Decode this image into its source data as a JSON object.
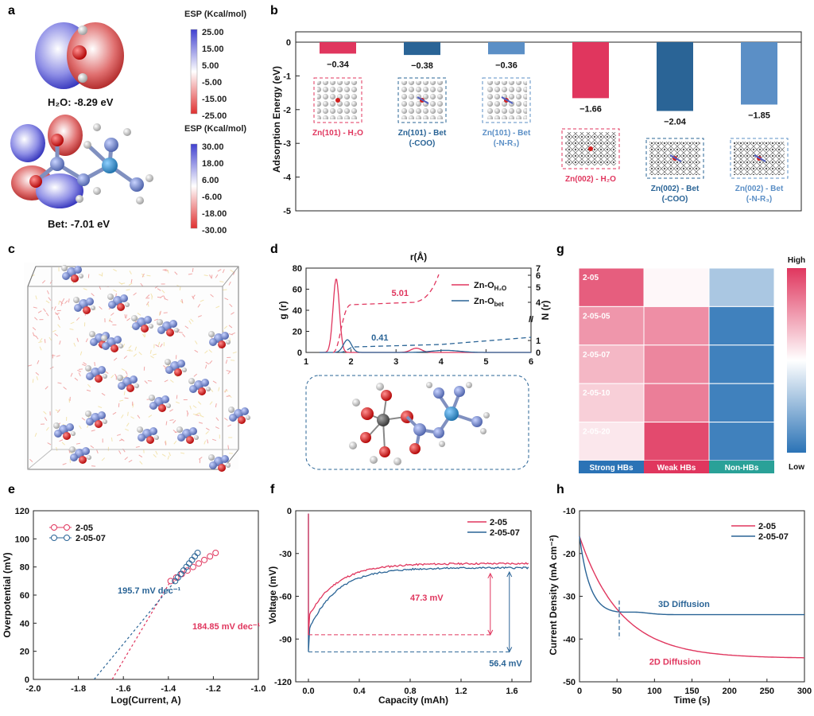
{
  "panel_labels": {
    "a": "a",
    "b": "b",
    "c": "c",
    "d": "d",
    "e": "e",
    "f": "f",
    "g": "g",
    "h": "h"
  },
  "colors": {
    "red": "#e0365e",
    "dark_blue": "#2a6496",
    "light_blue": "#5b8fc6",
    "dashed_red": "#e0365e"
  },
  "panel_a": {
    "h2o_label": "H₂O: -8.29 eV",
    "bet_label": "Bet: -7.01 eV",
    "esp1": {
      "title": "ESP (Kcal/mol)",
      "ticks": [
        "25.00",
        "15.00",
        "5.00",
        "-5.00",
        "-15.00",
        "-25.00"
      ]
    },
    "esp2": {
      "title": "ESP (Kcal/mol)",
      "ticks": [
        "30.00",
        "18.00",
        "6.00",
        "-6.00",
        "-18.00",
        "-30.00"
      ]
    }
  },
  "panel_c": {
    "description_icon": "molecular-dynamics-box"
  },
  "chart_data": [
    {
      "id": "b",
      "type": "bar",
      "ylabel": "Adsorption Energy (eV)",
      "ylim": [
        -5,
        0
      ],
      "yticks": [
        "0",
        "-1",
        "-2",
        "-3",
        "-4",
        "-5"
      ],
      "categories": [
        "Zn(101) - H₂O",
        "Zn(101) - Bet (-COO)",
        "Zn(101) - Bet (-N-R₃)",
        "Zn(002) - H₂O",
        "Zn(002) - Bet (-COO)",
        "Zn(002) - Bet (-N-R₃)"
      ],
      "cat_lines": [
        [
          "Zn(101) - H₂O"
        ],
        [
          "Zn(101) - Bet",
          "(-COO)"
        ],
        [
          "Zn(101) - Bet",
          "(-N-R₃)"
        ],
        [
          "Zn(002) - H₂O"
        ],
        [
          "Zn(002) - Bet",
          "(-COO)"
        ],
        [
          "Zn(002) - Bet",
          "(-N-R₃)"
        ]
      ],
      "values": [
        -0.34,
        -0.38,
        -0.36,
        -1.66,
        -2.04,
        -1.85
      ],
      "value_labels": [
        "−0.34",
        "−0.38",
        "−0.36",
        "−1.66",
        "−2.04",
        "−1.85"
      ]
    },
    {
      "id": "d",
      "type": "line",
      "title": "r(Å)",
      "ylabel_left": "g (r)",
      "ylabel_right": "N (r)",
      "xlim": [
        1,
        6
      ],
      "ylim_left": [
        0,
        80
      ],
      "ylim_right": [
        0,
        7
      ],
      "xticks": [
        "1",
        "2",
        "3",
        "4",
        "5",
        "6"
      ],
      "yticks_left": [
        "0",
        "20",
        "40",
        "60",
        "80"
      ],
      "yticks_right": [
        "0",
        "1",
        "4",
        "5",
        "6",
        "7"
      ],
      "series": [
        {
          "name": "Zn-O_H2O",
          "legend": "Zn-O",
          "sub": "H₂O"
        },
        {
          "name": "Zn-O_bet",
          "legend": "Zn-O",
          "sub": "bet"
        }
      ],
      "annotations": [
        "5.01",
        "0.41"
      ]
    },
    {
      "id": "g",
      "type": "heatmap",
      "rows": [
        "2-05",
        "2-05-05",
        "2-05-07",
        "2-05-10",
        "2-05-20"
      ],
      "columns": [
        "Strong HBs",
        "Weak HBs",
        "Non-HBs"
      ],
      "values": [
        [
          0.9,
          0.52,
          0.3
        ],
        [
          0.76,
          0.78,
          0.05
        ],
        [
          0.68,
          0.8,
          0.05
        ],
        [
          0.62,
          0.82,
          0.05
        ],
        [
          0.56,
          0.95,
          0.05
        ]
      ],
      "colorbar": {
        "high": "High",
        "low": "Low"
      }
    },
    {
      "id": "e",
      "type": "scatter",
      "xlabel": "Log(Current, A)",
      "ylabel": "Overpotential (mV)",
      "xlim": [
        -2.0,
        -1.0
      ],
      "ylim": [
        0,
        120
      ],
      "xticks": [
        "-2.0",
        "-1.8",
        "-1.6",
        "-1.4",
        "-1.2",
        "-1.0"
      ],
      "yticks": [
        "0",
        "20",
        "40",
        "60",
        "80",
        "100",
        "120"
      ],
      "series": [
        {
          "name": "2-05",
          "slope_label": "184.85 mV dec⁻¹",
          "x_start": -1.39,
          "x_end": -1.19,
          "y_start": 70,
          "y_end": 90,
          "fit_x0": -1.65
        },
        {
          "name": "2-05-07",
          "slope_label": "195.7 mV dec⁻¹",
          "x_start": -1.37,
          "x_end": -1.27,
          "y_start": 70,
          "y_end": 90,
          "fit_x0": -1.73
        }
      ]
    },
    {
      "id": "f",
      "type": "line",
      "xlabel": "Capacity (mAh)",
      "ylabel": "Voltage (mV)",
      "xlim": [
        -0.1,
        1.75
      ],
      "ylim": [
        -120,
        0
      ],
      "xticks": [
        "0.0",
        "0.4",
        "0.8",
        "1.2",
        "1.6"
      ],
      "yticks": [
        "0",
        "-30",
        "-60",
        "-90",
        "-120"
      ],
      "series": [
        {
          "name": "2-05"
        },
        {
          "name": "2-05-07"
        }
      ],
      "annotations": [
        "47.3 mV",
        "56.4 mV"
      ]
    },
    {
      "id": "h",
      "type": "line",
      "xlabel": "Time (s)",
      "ylabel": "Current Density (mA cm⁻²)",
      "xlim": [
        0,
        300
      ],
      "ylim": [
        -50,
        -10
      ],
      "xticks": [
        "0",
        "50",
        "100",
        "150",
        "200",
        "250",
        "300"
      ],
      "yticks": [
        "-10",
        "-20",
        "-30",
        "-40",
        "-50"
      ],
      "series": [
        {
          "name": "2-05"
        },
        {
          "name": "2-05-07"
        }
      ],
      "annotations": [
        "3D Diffusion",
        "2D Diffusion"
      ]
    }
  ]
}
